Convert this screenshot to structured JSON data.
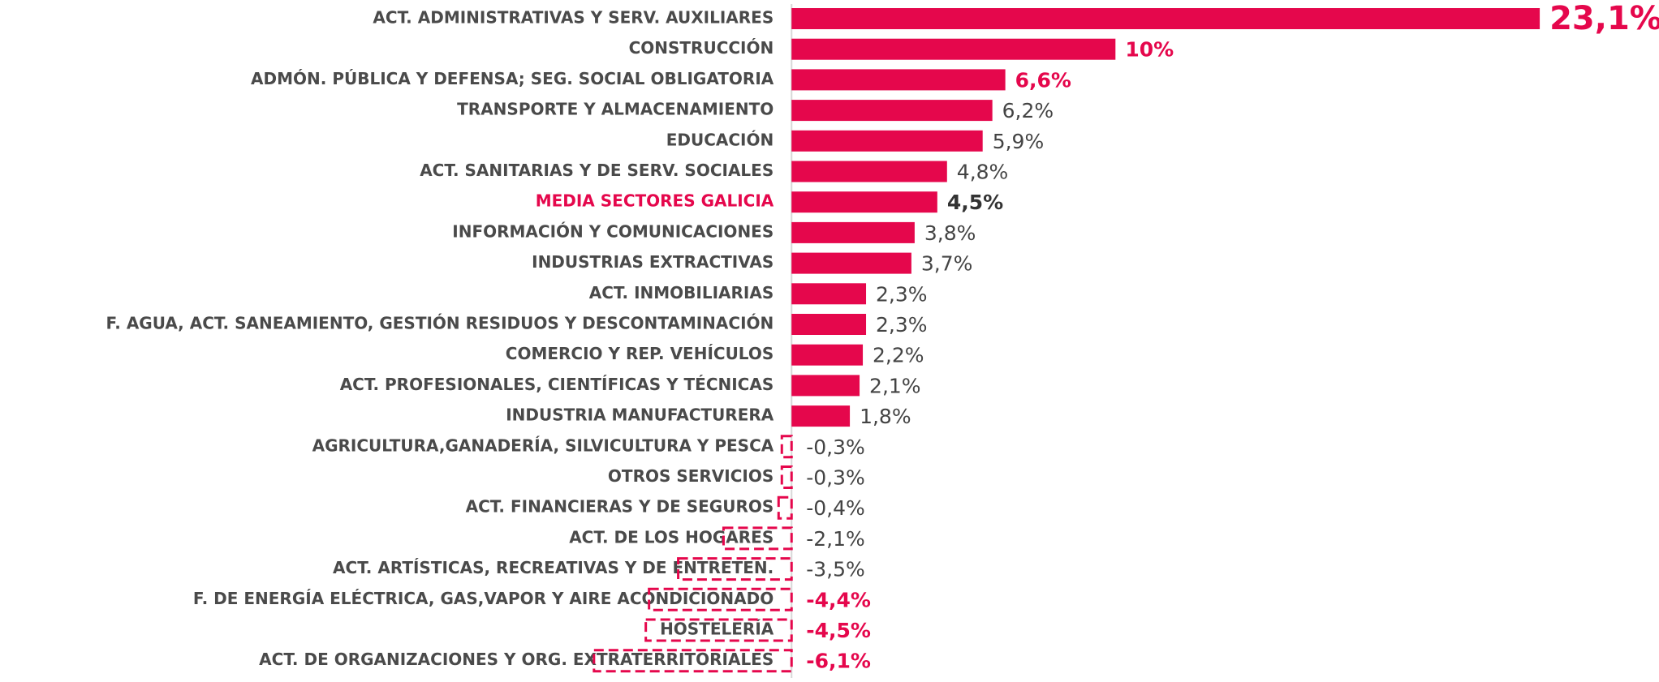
{
  "chart_data": {
    "type": "bar",
    "orientation": "horizontal",
    "categories": [
      "ACT. ADMINISTRATIVAS Y SERV. AUXILIARES",
      "CONSTRUCCIÓN",
      "ADMÓN. PÚBLICA Y DEFENSA; SEG. SOCIAL OBLIGATORIA",
      "TRANSPORTE Y ALMACENAMIENTO",
      "EDUCACIÓN",
      "ACT. SANITARIAS Y DE SERV. SOCIALES",
      "MEDIA SECTORES GALICIA",
      "INFORMACIÓN Y COMUNICACIONES",
      "INDUSTRIAS EXTRACTIVAS",
      "ACT. INMOBILIARIAS",
      "F. AGUA, ACT. SANEAMIENTO, GESTIÓN RESIDUOS Y DESCONTAMINACIÓN",
      "COMERCIO Y REP. VEHÍCULOS",
      "ACT. PROFESIONALES, CIENTÍFICAS Y TÉCNICAS",
      "INDUSTRIA MANUFACTURERA",
      "AGRICULTURA,GANADERÍA, SILVICULTURA Y PESCA",
      "OTROS SERVICIOS",
      "ACT. FINANCIERAS Y DE SEGUROS",
      "ACT. DE LOS HOGARES",
      "ACT. ARTÍSTICAS, RECREATIVAS Y DE ENTRETEN.",
      "F. DE ENERGÍA ELÉCTRICA, GAS,VAPOR Y AIRE ACONDICIONADO",
      "HOSTELERÍA",
      "ACT. DE ORGANIZACIONES Y ORG. EXTRATERRITORIALES"
    ],
    "values": [
      23.1,
      10,
      6.6,
      6.2,
      5.9,
      4.8,
      4.5,
      3.8,
      3.7,
      2.3,
      2.3,
      2.2,
      2.1,
      1.8,
      -0.3,
      -0.3,
      -0.4,
      -2.1,
      -3.5,
      -4.4,
      -4.5,
      -6.1
    ],
    "value_labels": [
      "23,1%",
      "10%",
      "6,6%",
      "6,2%",
      "5,9%",
      "4,8%",
      "4,5%",
      "3,8%",
      "3,7%",
      "2,3%",
      "2,3%",
      "2,2%",
      "2,1%",
      "1,8%",
      "-0,3%",
      "-0,3%",
      "-0,4%",
      "-2,1%",
      "-3,5%",
      "-4,4%",
      "-4,5%",
      "-6,1%"
    ],
    "color": "#e5074c",
    "xlim": [
      -8,
      24
    ]
  }
}
